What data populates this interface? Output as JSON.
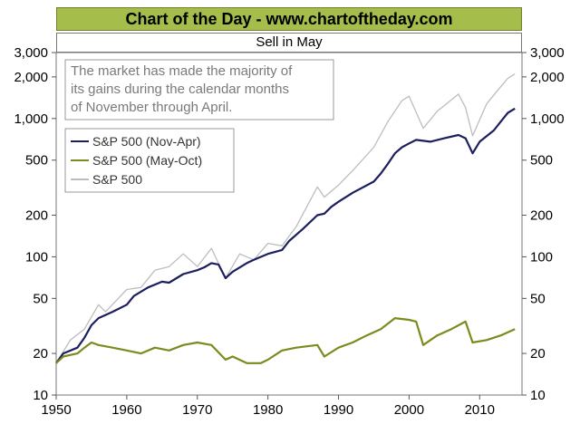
{
  "banner": {
    "title": "Chart of the Day - www.chartoftheday.com"
  },
  "chart_data": {
    "type": "line",
    "title": "Sell in May",
    "annotation": "The market has made the majority of its gains during the calendar months of November through April.",
    "annotation_lines": [
      "The market has made the majority of",
      "its gains during the calendar months",
      "of November through April."
    ],
    "y_scale": "log",
    "ylim": [
      10,
      3000
    ],
    "xlim": [
      1950,
      2016
    ],
    "y_ticks": [
      10,
      20,
      50,
      100,
      200,
      500,
      1000,
      2000,
      3000
    ],
    "y_tick_labels": [
      "10",
      "20",
      "50",
      "100",
      "200",
      "500",
      "1,000",
      "2,000",
      "3,000"
    ],
    "x_ticks": [
      1950,
      1960,
      1970,
      1980,
      1990,
      2000,
      2010
    ],
    "x_tick_labels": [
      "1950",
      "1960",
      "1970",
      "1980",
      "1990",
      "2000",
      "2010"
    ],
    "grid": false,
    "legend_position": "top-left",
    "series": [
      {
        "name": "S&P 500 (Nov-Apr)",
        "color": "#1b1f5e",
        "points": [
          [
            1950,
            17
          ],
          [
            1951,
            20
          ],
          [
            1953,
            22
          ],
          [
            1954,
            26
          ],
          [
            1955,
            32
          ],
          [
            1956,
            36
          ],
          [
            1958,
            40
          ],
          [
            1960,
            45
          ],
          [
            1961,
            52
          ],
          [
            1963,
            60
          ],
          [
            1965,
            66
          ],
          [
            1966,
            65
          ],
          [
            1968,
            75
          ],
          [
            1970,
            80
          ],
          [
            1971,
            84
          ],
          [
            1972,
            90
          ],
          [
            1973,
            88
          ],
          [
            1974,
            70
          ],
          [
            1975,
            78
          ],
          [
            1977,
            90
          ],
          [
            1978,
            95
          ],
          [
            1980,
            105
          ],
          [
            1982,
            112
          ],
          [
            1983,
            130
          ],
          [
            1985,
            160
          ],
          [
            1987,
            200
          ],
          [
            1988,
            205
          ],
          [
            1989,
            230
          ],
          [
            1990,
            250
          ],
          [
            1992,
            290
          ],
          [
            1995,
            350
          ],
          [
            1996,
            400
          ],
          [
            1997,
            470
          ],
          [
            1998,
            560
          ],
          [
            1999,
            620
          ],
          [
            2000,
            660
          ],
          [
            2001,
            700
          ],
          [
            2003,
            680
          ],
          [
            2005,
            720
          ],
          [
            2007,
            760
          ],
          [
            2008,
            720
          ],
          [
            2009,
            560
          ],
          [
            2010,
            680
          ],
          [
            2012,
            820
          ],
          [
            2013,
            950
          ],
          [
            2014,
            1100
          ],
          [
            2015,
            1180
          ]
        ]
      },
      {
        "name": "S&P 500 (May-Oct)",
        "color": "#7d8a1e",
        "points": [
          [
            1950,
            17
          ],
          [
            1951,
            19
          ],
          [
            1953,
            20
          ],
          [
            1954,
            22
          ],
          [
            1955,
            24
          ],
          [
            1956,
            23
          ],
          [
            1958,
            22
          ],
          [
            1960,
            21
          ],
          [
            1962,
            20
          ],
          [
            1964,
            22
          ],
          [
            1966,
            21
          ],
          [
            1968,
            23
          ],
          [
            1970,
            24
          ],
          [
            1972,
            23
          ],
          [
            1974,
            18
          ],
          [
            1975,
            19
          ],
          [
            1977,
            17
          ],
          [
            1979,
            17
          ],
          [
            1980,
            18
          ],
          [
            1982,
            21
          ],
          [
            1984,
            22
          ],
          [
            1987,
            23
          ],
          [
            1988,
            19
          ],
          [
            1990,
            22
          ],
          [
            1992,
            24
          ],
          [
            1994,
            27
          ],
          [
            1996,
            30
          ],
          [
            1998,
            36
          ],
          [
            2000,
            35
          ],
          [
            2001,
            34
          ],
          [
            2002,
            23
          ],
          [
            2004,
            27
          ],
          [
            2006,
            30
          ],
          [
            2008,
            34
          ],
          [
            2009,
            24
          ],
          [
            2011,
            25
          ],
          [
            2013,
            27
          ],
          [
            2015,
            30
          ]
        ]
      },
      {
        "name": "S&P 500",
        "color": "#bdbdbd",
        "points": [
          [
            1950,
            17
          ],
          [
            1952,
            25
          ],
          [
            1954,
            30
          ],
          [
            1956,
            45
          ],
          [
            1957,
            40
          ],
          [
            1960,
            58
          ],
          [
            1962,
            60
          ],
          [
            1964,
            80
          ],
          [
            1966,
            85
          ],
          [
            1968,
            105
          ],
          [
            1970,
            85
          ],
          [
            1972,
            115
          ],
          [
            1974,
            70
          ],
          [
            1976,
            105
          ],
          [
            1978,
            95
          ],
          [
            1980,
            125
          ],
          [
            1982,
            120
          ],
          [
            1984,
            165
          ],
          [
            1987,
            320
          ],
          [
            1988,
            270
          ],
          [
            1990,
            330
          ],
          [
            1992,
            420
          ],
          [
            1995,
            620
          ],
          [
            1997,
            950
          ],
          [
            1999,
            1350
          ],
          [
            2000,
            1450
          ],
          [
            2002,
            850
          ],
          [
            2004,
            1130
          ],
          [
            2007,
            1500
          ],
          [
            2008,
            1200
          ],
          [
            2009,
            750
          ],
          [
            2011,
            1280
          ],
          [
            2013,
            1700
          ],
          [
            2014,
            1950
          ],
          [
            2015,
            2100
          ]
        ]
      }
    ]
  }
}
